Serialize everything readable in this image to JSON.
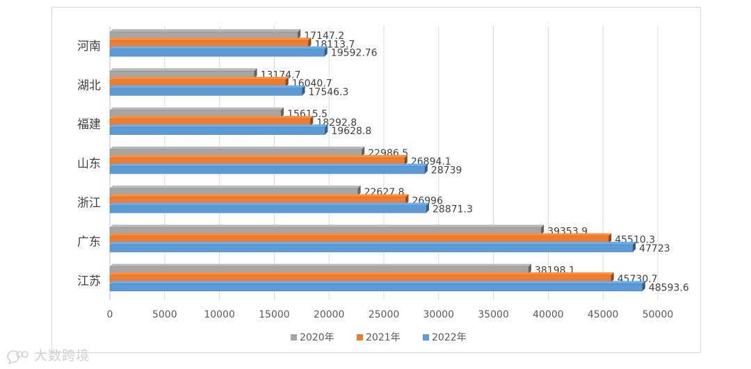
{
  "chart_data": {
    "type": "bar",
    "orientation": "horizontal",
    "title": "",
    "xlabel": "",
    "ylabel": "",
    "categories": [
      "江苏",
      "广东",
      "浙江",
      "山东",
      "福建",
      "湖北",
      "河南"
    ],
    "series": [
      {
        "name": "2020年",
        "color": "#a5a5a5",
        "values": [
          38198.1,
          39353.9,
          22627.8,
          22986.5,
          15615.5,
          13174.7,
          17147.2
        ],
        "labels": [
          "38198.1",
          "39353.9",
          "22627.8",
          "22986.5",
          "15615.5",
          "13174.7",
          "17147.2"
        ]
      },
      {
        "name": "2021年",
        "color": "#ed7d31",
        "values": [
          45730.7,
          45510.3,
          26996,
          26894.1,
          18292.8,
          16040.7,
          18113.7
        ],
        "labels": [
          "45730.7",
          "45510.3",
          "26996",
          "26894.1",
          "18292.8",
          "16040.7",
          "18113.7"
        ]
      },
      {
        "name": "2022年",
        "color": "#5b9bd5",
        "values": [
          48593.6,
          47723,
          28871.3,
          28739,
          19628.8,
          17546.3,
          19592.76
        ],
        "labels": [
          "48593.6",
          "47723",
          "28871.3",
          "28739",
          "19628.8",
          "17546.3",
          "19592.76"
        ]
      }
    ],
    "xlim": [
      0,
      50000
    ],
    "xticks": [
      "0",
      "5000",
      "10000",
      "15000",
      "20000",
      "25000",
      "30000",
      "35000",
      "40000",
      "45000",
      "50000"
    ],
    "grid": true,
    "legend_position": "bottom",
    "style": "3d-bars"
  },
  "watermark": {
    "text": "大数跨境",
    "logo": "chat-bubble-logo-icon"
  }
}
